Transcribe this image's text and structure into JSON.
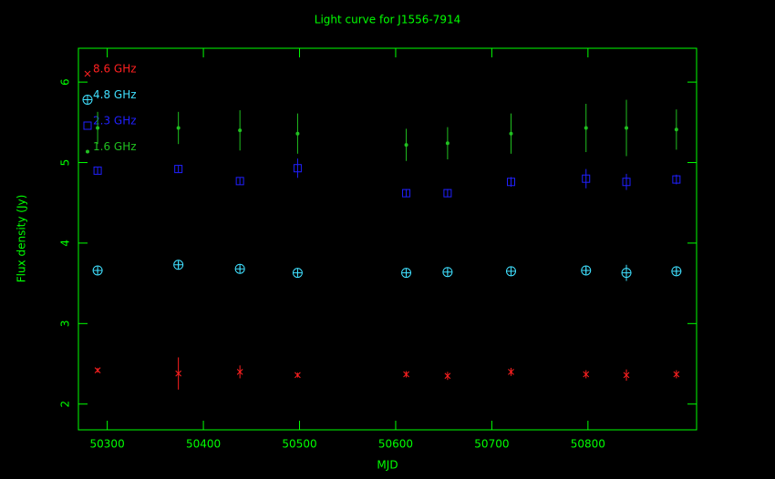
{
  "chart_data": {
    "type": "scatter",
    "title": "Light curve for J1556-7914",
    "x_label": "MJD",
    "y_label": "Flux density (Jy)",
    "xlim": [
      50270,
      50913
    ],
    "ylim": [
      1.68,
      6.42
    ],
    "xticks": [
      50300,
      50400,
      50500,
      50600,
      50700,
      50800
    ],
    "yticks": [
      2,
      3,
      4,
      5,
      6
    ],
    "axis_color": "#00ff00",
    "legend": "top-left",
    "x": [
      50290,
      50374,
      50438,
      50498,
      50611,
      50654,
      50720,
      50798,
      50840,
      50892
    ],
    "series": [
      {
        "name": "8.6 GHz",
        "color": "#ff2020",
        "marker": "cross",
        "values": [
          2.42,
          2.38,
          2.4,
          2.36,
          2.37,
          2.35,
          2.4,
          2.37,
          2.36,
          2.37
        ],
        "errors": [
          0.03,
          0.2,
          0.08,
          0.03,
          0.04,
          0.05,
          0.05,
          0.05,
          0.07,
          0.05
        ]
      },
      {
        "name": "4.8 GHz",
        "color": "#40e0ff",
        "marker": "circle-plus",
        "values": [
          3.66,
          3.73,
          3.68,
          3.63,
          3.63,
          3.64,
          3.65,
          3.66,
          3.63,
          3.65
        ],
        "errors": [
          0.03,
          0.04,
          0.03,
          0.03,
          0.03,
          0.03,
          0.03,
          0.04,
          0.1,
          0.04
        ]
      },
      {
        "name": "2.3 GHz",
        "color": "#2020ff",
        "marker": "square",
        "values": [
          4.9,
          4.92,
          4.77,
          4.93,
          4.62,
          4.62,
          4.76,
          4.8,
          4.76,
          4.79
        ],
        "errors": [
          0.04,
          0.04,
          0.04,
          0.12,
          0.05,
          0.05,
          0.06,
          0.12,
          0.1,
          0.06
        ]
      },
      {
        "name": "1.6 GHz",
        "color": "#20c020",
        "marker": "dot",
        "values": [
          5.43,
          5.43,
          5.4,
          5.36,
          5.22,
          5.24,
          5.36,
          5.43,
          5.43,
          5.41
        ],
        "errors": [
          0.2,
          0.2,
          0.25,
          0.25,
          0.2,
          0.2,
          0.25,
          0.3,
          0.35,
          0.25
        ]
      }
    ]
  }
}
